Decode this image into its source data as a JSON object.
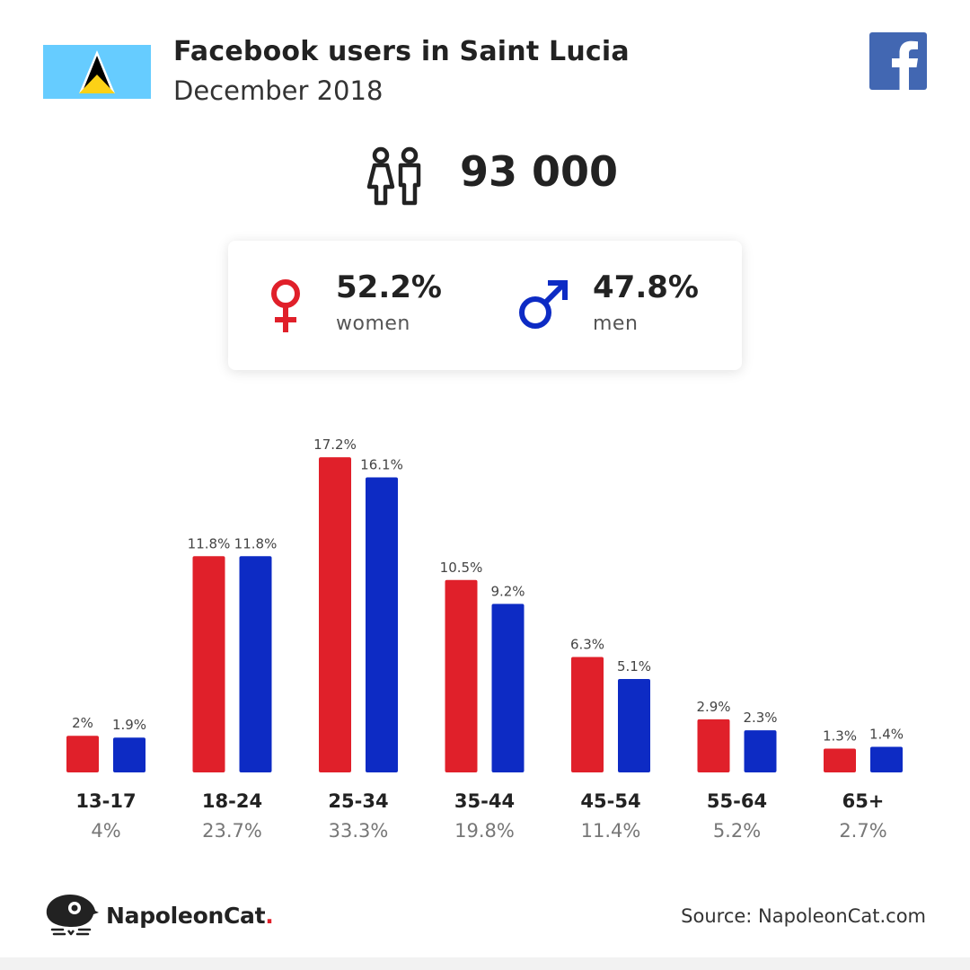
{
  "header": {
    "title": "Facebook users in Saint Lucia",
    "subtitle": "December 2018",
    "flag_icon": "saint-lucia-flag-icon",
    "platform_icon": "facebook-logo-icon"
  },
  "total": {
    "icon": "people-icon",
    "value": "93 000"
  },
  "gender": {
    "women": {
      "pct": "52.2%",
      "label": "women",
      "icon": "female-symbol-icon",
      "color": "#e0202a"
    },
    "men": {
      "pct": "47.8%",
      "label": "men",
      "icon": "male-symbol-icon",
      "color": "#0d2bc4"
    }
  },
  "colors": {
    "women": "#e0202a",
    "men": "#0d2bc4",
    "flag_blue": "#66ccff",
    "flag_yellow": "#fcd116",
    "facebook_blue": "#4267b2"
  },
  "chart_data": {
    "type": "bar",
    "categories": [
      "13-17",
      "18-24",
      "25-34",
      "35-44",
      "45-54",
      "55-64",
      "65+"
    ],
    "category_totals": [
      "4%",
      "23.7%",
      "33.3%",
      "19.8%",
      "11.4%",
      "5.2%",
      "2.7%"
    ],
    "series": [
      {
        "key": "women",
        "values": [
          2,
          11.8,
          17.2,
          10.5,
          6.3,
          2.9,
          1.3
        ],
        "labels": [
          "2%",
          "11.8%",
          "17.2%",
          "10.5%",
          "6.3%",
          "2.9%",
          "1.3%"
        ]
      },
      {
        "key": "men",
        "values": [
          1.9,
          11.8,
          16.1,
          9.2,
          5.1,
          2.3,
          1.4
        ],
        "labels": [
          "1.9%",
          "11.8%",
          "16.1%",
          "9.2%",
          "5.1%",
          "2.3%",
          "1.4%"
        ]
      }
    ],
    "legend": "none",
    "grid": false
  },
  "footer": {
    "brand": "NapoleonCat",
    "brand_dot": ".",
    "brand_icon": "napoleoncat-logo-icon",
    "source": "Source: NapoleonCat.com"
  }
}
